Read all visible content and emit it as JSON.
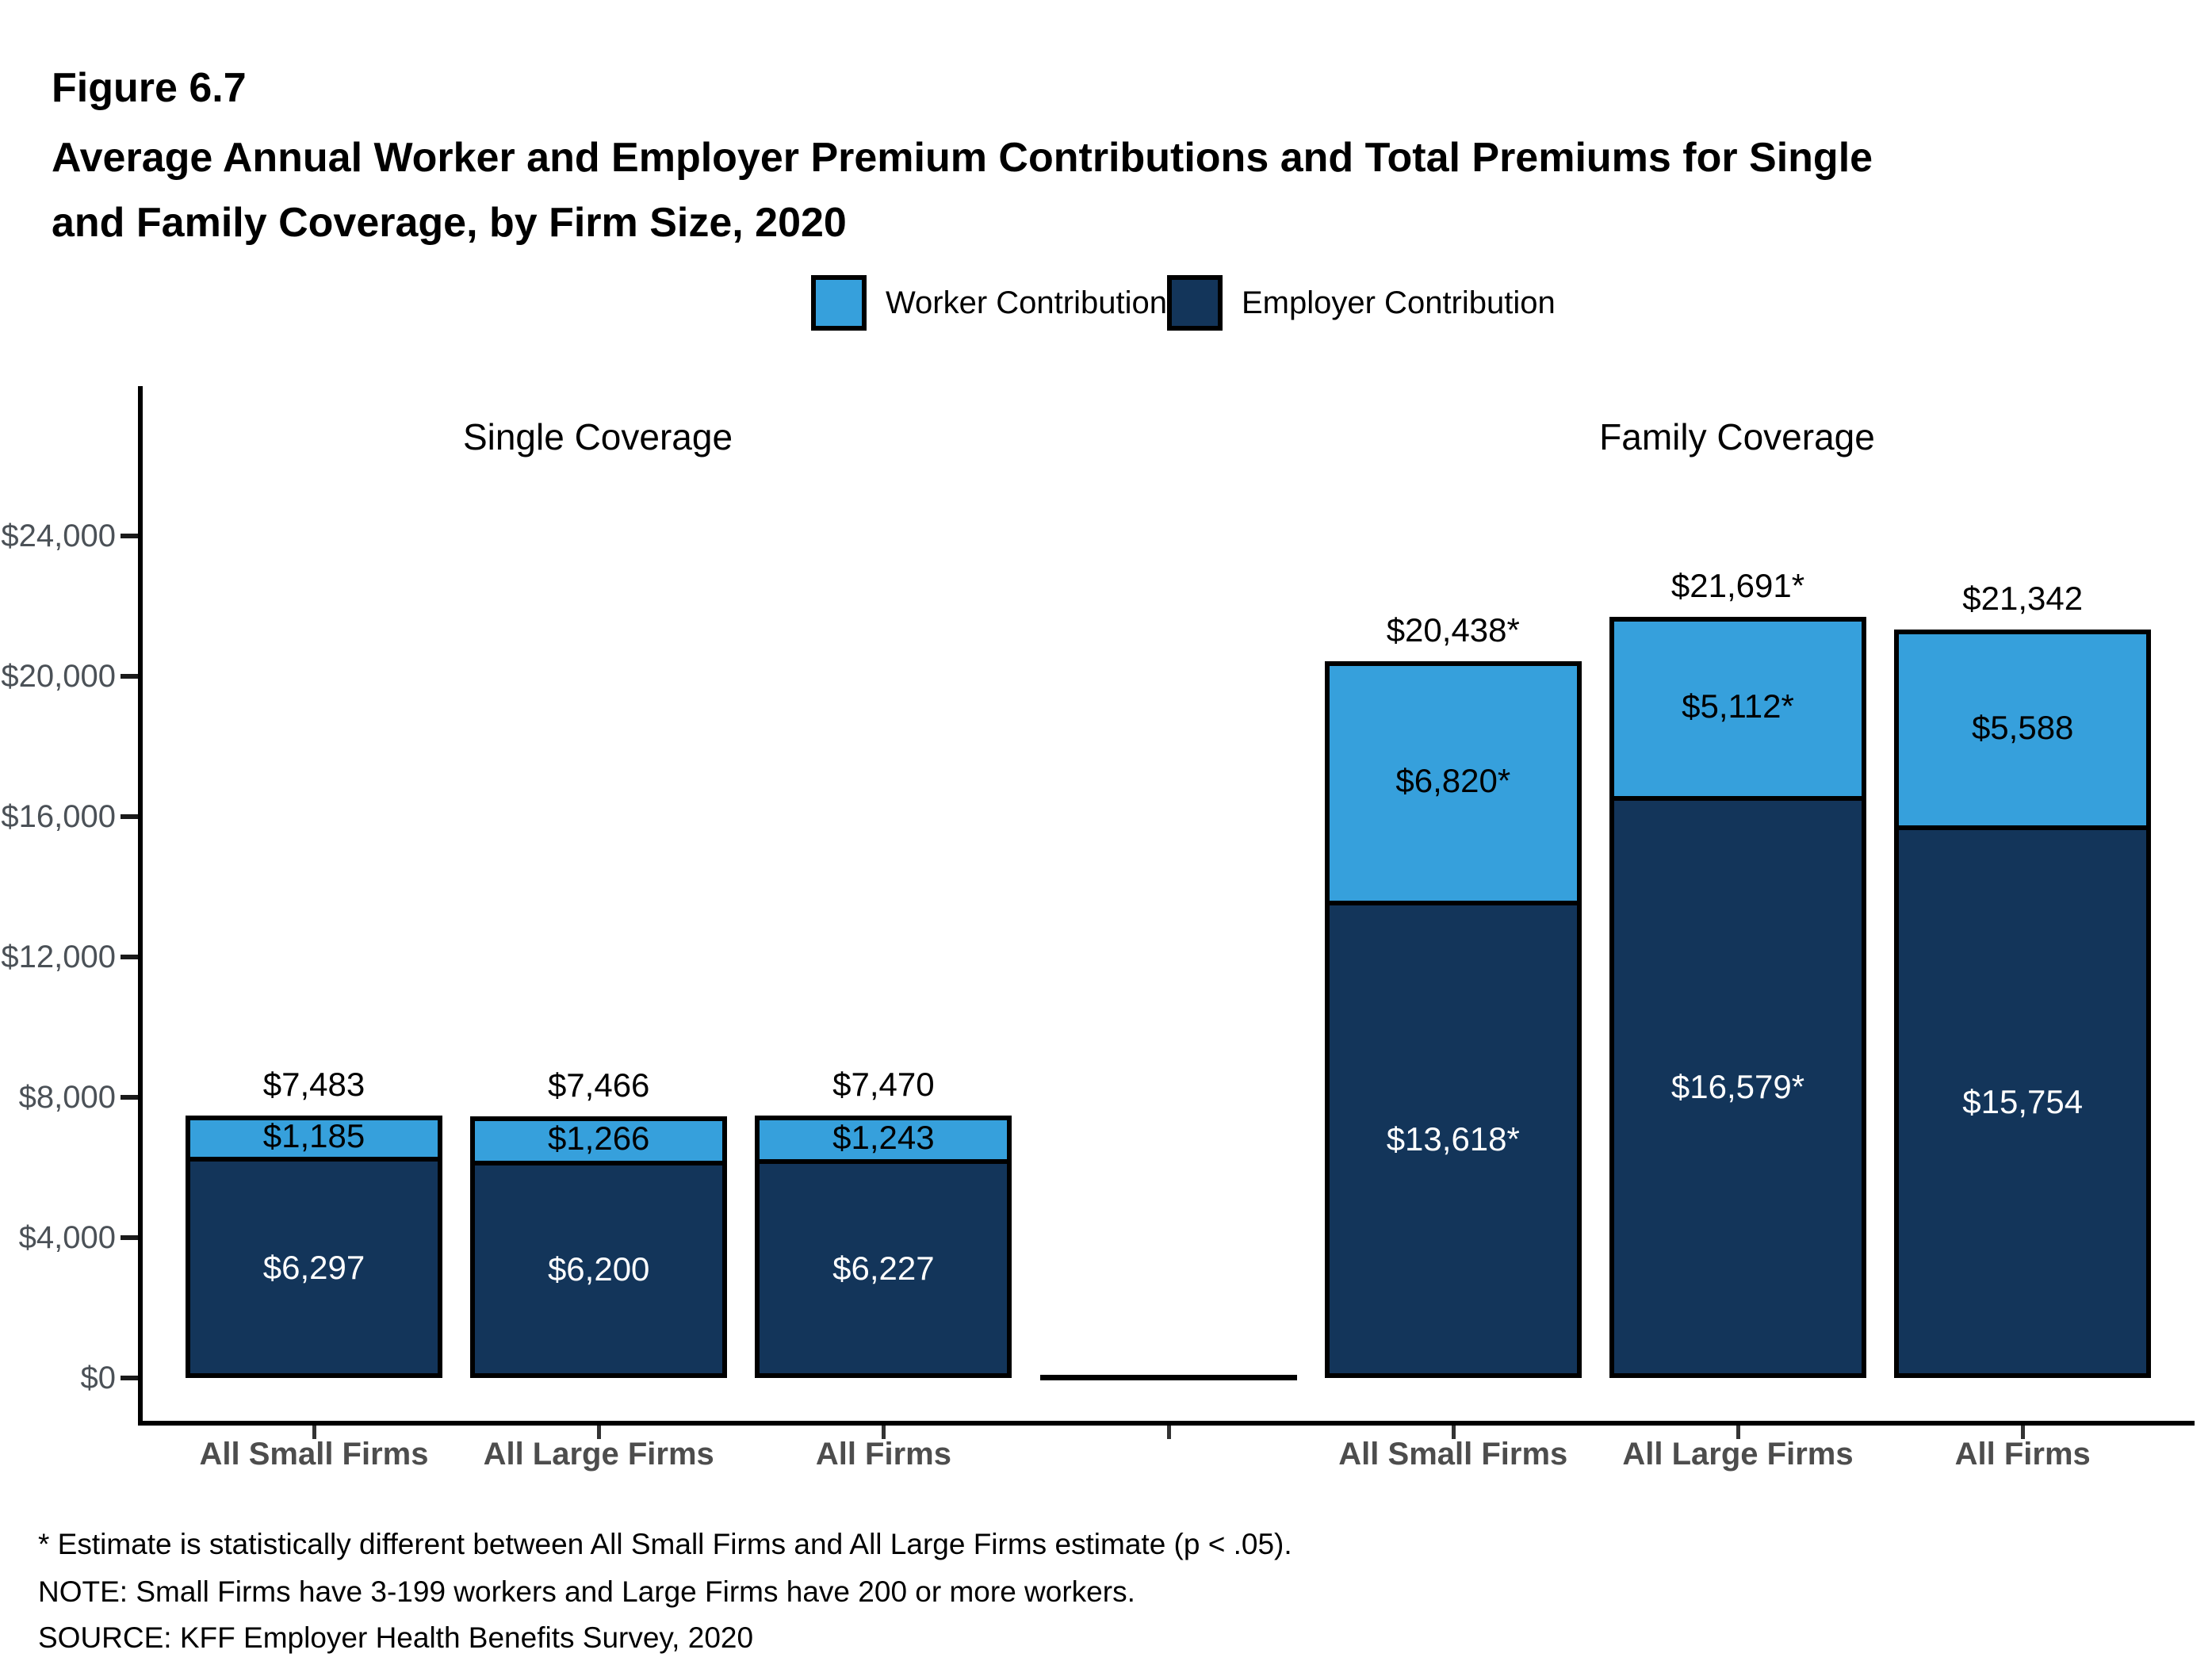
{
  "figure": {
    "label": "Figure 6.7",
    "title_line1": "Average Annual Worker and Employer Premium Contributions and Total Premiums for Single",
    "title_line2": "and Family Coverage, by Firm Size, 2020"
  },
  "legend": {
    "items": [
      {
        "label": "Worker Contribution",
        "color": "#36A0DC"
      },
      {
        "label": "Employer Contribution",
        "color": "#13355A"
      }
    ]
  },
  "colors": {
    "worker": "#36A0DC",
    "employer": "#13355A",
    "axis": "#000000",
    "y_tick_label": "#4B5157",
    "category_label": "#4D4D4D"
  },
  "chart_data": {
    "type": "bar",
    "stacked": true,
    "series": [
      "Worker Contribution",
      "Employer Contribution"
    ],
    "ylim": [
      0,
      24000
    ],
    "y_tick_values": [
      0,
      4000,
      8000,
      12000,
      16000,
      20000,
      24000
    ],
    "y_ticks": [
      "$0",
      "$4,000",
      "$8,000",
      "$12,000",
      "$16,000",
      "$20,000",
      "$24,000"
    ],
    "grid": false,
    "legend_position": "top",
    "groups": [
      {
        "title": "Single Coverage",
        "categories": [
          "All Small Firms",
          "All Large Firms",
          "All Firms"
        ],
        "bars": [
          {
            "worker": 1185,
            "employer": 6297,
            "total": 7483,
            "worker_label": "$1,185",
            "employer_label": "$6,297",
            "total_label": "$7,483"
          },
          {
            "worker": 1266,
            "employer": 6200,
            "total": 7466,
            "worker_label": "$1,266",
            "employer_label": "$6,200",
            "total_label": "$7,466"
          },
          {
            "worker": 1243,
            "employer": 6227,
            "total": 7470,
            "worker_label": "$1,243",
            "employer_label": "$6,227",
            "total_label": "$7,470"
          }
        ]
      },
      {
        "title": "Family Coverage",
        "categories": [
          "All Small Firms",
          "All Large Firms",
          "All Firms"
        ],
        "bars": [
          {
            "worker": 6820,
            "employer": 13618,
            "total": 20438,
            "worker_label": "$6,820*",
            "employer_label": "$13,618*",
            "total_label": "$20,438*"
          },
          {
            "worker": 5112,
            "employer": 16579,
            "total": 21691,
            "worker_label": "$5,112*",
            "employer_label": "$16,579*",
            "total_label": "$21,691*"
          },
          {
            "worker": 5588,
            "employer": 15754,
            "total": 21342,
            "worker_label": "$5,588",
            "employer_label": "$15,754",
            "total_label": "$21,342"
          }
        ]
      }
    ]
  },
  "footnotes": [
    "* Estimate is statistically different between All Small Firms and All Large Firms estimate (p < .05).",
    "NOTE: Small Firms have 3-199 workers and Large Firms have 200 or more workers.",
    "SOURCE: KFF Employer Health Benefits Survey, 2020"
  ]
}
